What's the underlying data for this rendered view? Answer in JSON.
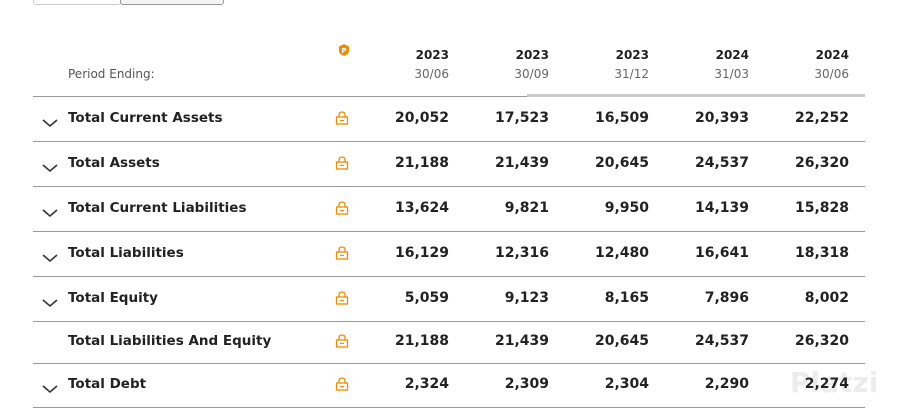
{
  "table": {
    "period_label": "Period Ending:",
    "columns": [
      {
        "year": "2023",
        "date": "30/06"
      },
      {
        "year": "2023",
        "date": "30/09"
      },
      {
        "year": "2023",
        "date": "31/12"
      },
      {
        "year": "2024",
        "date": "31/03"
      },
      {
        "year": "2024",
        "date": "30/06"
      }
    ],
    "rows": [
      {
        "label": "Total Current Assets",
        "expandable": true,
        "values": [
          "20,052",
          "17,523",
          "16,509",
          "20,393",
          "22,252"
        ]
      },
      {
        "label": "Total Assets",
        "expandable": true,
        "values": [
          "21,188",
          "21,439",
          "20,645",
          "24,537",
          "26,320"
        ]
      },
      {
        "label": "Total Current Liabilities",
        "expandable": true,
        "values": [
          "13,624",
          "9,821",
          "9,950",
          "14,139",
          "15,828"
        ]
      },
      {
        "label": "Total Liabilities",
        "expandable": true,
        "values": [
          "16,129",
          "12,316",
          "12,480",
          "16,641",
          "18,318"
        ]
      },
      {
        "label": "Total Equity",
        "expandable": true,
        "values": [
          "5,059",
          "9,123",
          "8,165",
          "7,896",
          "8,002"
        ]
      },
      {
        "label": "Total Liabilities And Equity",
        "expandable": false,
        "values": [
          "21,188",
          "21,439",
          "20,645",
          "24,537",
          "26,320"
        ]
      },
      {
        "label": "Total Debt",
        "expandable": true,
        "values": [
          "2,324",
          "2,309",
          "2,304",
          "2,290",
          "2,274"
        ]
      }
    ]
  },
  "watermark": "Platzi"
}
